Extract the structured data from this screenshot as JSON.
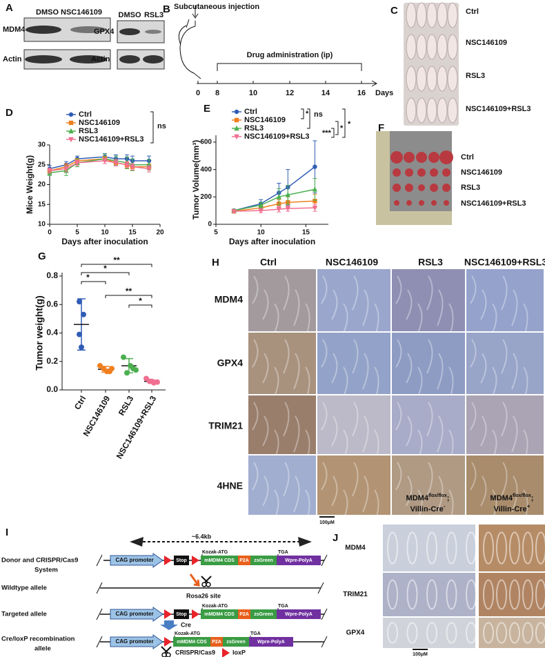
{
  "panel_letters": [
    "A",
    "B",
    "C",
    "D",
    "E",
    "F",
    "G",
    "H",
    "I",
    "J"
  ],
  "panel_a": {
    "lanes_left": [
      "DMSO",
      "NSC146109"
    ],
    "lanes_right": [
      "DMSO",
      "RSL3"
    ],
    "proteins_left": [
      "MDM4",
      "Actin"
    ],
    "proteins_right": [
      "GPX4",
      "Actin"
    ]
  },
  "panel_b": {
    "injection": "Subcutaneous injection",
    "administration": "Drug administration (ip)",
    "days": [
      0,
      8,
      10,
      12,
      14,
      16
    ],
    "unit": "Days"
  },
  "panel_c": {
    "groups": [
      "Ctrl",
      "NSC146109",
      "RSL3",
      "NSC146109+RSL3"
    ]
  },
  "panel_f": {
    "groups": [
      "Ctrl",
      "NSC146109",
      "RSL3",
      "NSC146109+RSL3"
    ]
  },
  "panel_h": {
    "columns": [
      "Ctrl",
      "NSC146109",
      "RSL3",
      "NSC146109+RSL3"
    ],
    "rows": [
      "MDM4",
      "GPX4",
      "TRIM21",
      "4HNE"
    ],
    "scale": "100μM"
  },
  "panel_i": {
    "rows": [
      "Donor and CRISPR/Cas9",
      "System",
      "Wildtype allele",
      "Targeted allele",
      "Cre/loxP recombination",
      "allele"
    ],
    "length": "~6.4kb",
    "site": "Rosa26 site",
    "cre": "Cre",
    "elements": {
      "cag": "CAG promoter",
      "stop": "Stop",
      "kozak": "Kozak-ATG",
      "cds": "mMDM4 CDS",
      "p2a": "P2A",
      "zsgreen": "zsGreen",
      "tga": "TGA",
      "wpre": "Wpre-PolyA"
    },
    "legend": [
      "CRISPR/Cas9",
      "loxP"
    ]
  },
  "panel_j": {
    "columns": [
      {
        "gene": "MDM4",
        "genotype": "flox/flox",
        "sep": ";",
        "driver": "Villin-Cre",
        "status": "-"
      },
      {
        "gene": "MDM4",
        "genotype": "flox/flox",
        "sep": ";",
        "driver": "Villin-Cre",
        "status": "+"
      }
    ],
    "rows": [
      "MDM4",
      "TRIM21",
      "GPX4"
    ],
    "scale": "100μM"
  },
  "chart_data": [
    {
      "type": "line",
      "ylabel": "Mice Weight(g)",
      "xlabel": "Days after inoculation",
      "x": [
        0,
        3,
        5,
        10,
        12,
        14,
        15,
        18
      ],
      "xlim": [
        0,
        20
      ],
      "xticks": [
        0,
        5,
        10,
        15,
        20
      ],
      "ylim": [
        10,
        30
      ],
      "yticks": [
        10,
        15,
        20,
        25,
        30
      ],
      "series": [
        {
          "name": "Ctrl",
          "color": "#2f5cb5",
          "marker": "circle",
          "values": [
            24,
            25,
            26.5,
            27,
            26.5,
            26.5,
            26,
            26
          ],
          "errors": [
            0.8,
            0.8,
            0.7,
            0.8,
            1,
            1,
            1.2,
            1.2
          ]
        },
        {
          "name": "NSC146109",
          "color": "#f07f1e",
          "marker": "square",
          "values": [
            23.5,
            24.5,
            26,
            26.5,
            25.5,
            25,
            24.5,
            24.5
          ],
          "errors": [
            0.6,
            0.8,
            0.6,
            0.6,
            0.8,
            0.8,
            0.8,
            0.7
          ]
        },
        {
          "name": "RSL3",
          "color": "#4caf4f",
          "marker": "triangle",
          "values": [
            23,
            23.5,
            25.5,
            26.5,
            26,
            25.5,
            25,
            25
          ],
          "errors": [
            0.7,
            1.2,
            1,
            1.2,
            1.2,
            1.5,
            1.5,
            1.3
          ]
        },
        {
          "name": "NSC146109+RSL3",
          "color": "#f06f90",
          "marker": "triangle-down",
          "values": [
            23.5,
            24,
            25.5,
            26,
            25.5,
            25,
            24.5,
            24
          ],
          "errors": [
            0.6,
            0.8,
            0.7,
            0.7,
            0.8,
            0.7,
            0.8,
            0.8
          ]
        }
      ],
      "annotations": [
        "ns"
      ]
    },
    {
      "type": "line",
      "ylabel": "Tumor Volume(mm³)",
      "xlabel": "Days after inoculation",
      "x": [
        7,
        10,
        12,
        13,
        16
      ],
      "xlim": [
        5,
        17.5
      ],
      "xticks": [
        5,
        10,
        15
      ],
      "ylim": [
        0,
        650
      ],
      "yticks": [
        0,
        200,
        400,
        600
      ],
      "series": [
        {
          "name": "Ctrl",
          "color": "#2f5cb5",
          "marker": "circle",
          "values": [
            100,
            150,
            230,
            270,
            420
          ],
          "errors": [
            10,
            30,
            70,
            130,
            190
          ]
        },
        {
          "name": "NSC146109",
          "color": "#f07f1e",
          "marker": "square",
          "values": [
            95,
            120,
            150,
            160,
            170
          ],
          "errors": [
            10,
            20,
            30,
            40,
            50
          ]
        },
        {
          "name": "RSL3",
          "color": "#4caf4f",
          "marker": "triangle",
          "values": [
            100,
            140,
            200,
            215,
            255
          ],
          "errors": [
            10,
            20,
            60,
            70,
            80
          ]
        },
        {
          "name": "NSC146109+RSL3",
          "color": "#f06f90",
          "marker": "triangle-down",
          "values": [
            95,
            100,
            110,
            115,
            120
          ],
          "errors": [
            10,
            15,
            20,
            20,
            25
          ]
        }
      ],
      "annotations": [
        "*",
        "ns",
        "***",
        "*",
        "*"
      ]
    },
    {
      "type": "strip",
      "ylabel": "Tumor weight(g)",
      "categories": [
        "Ctrl",
        "NSC146109",
        "RSL3",
        "NSC146109+RSL3"
      ],
      "colors": [
        "#2f5cb5",
        "#f07f1e",
        "#4caf4f",
        "#f06f90"
      ],
      "points": [
        [
          0.62,
          0.53,
          0.39,
          0.3
        ],
        [
          0.17,
          0.15,
          0.13,
          0.13,
          0.15
        ],
        [
          0.23,
          0.17,
          0.15,
          0.12,
          0.14
        ],
        [
          0.08,
          0.06,
          0.05,
          0.055,
          0.06
        ]
      ],
      "means": [
        0.46,
        0.145,
        0.17,
        0.06
      ],
      "sds": [
        0.18,
        0.02,
        0.05,
        0.01
      ],
      "ylim": [
        0,
        0.8
      ],
      "yticks": [
        {
          "value": 0,
          "label": "0.0"
        },
        {
          "value": 0.2,
          "label": "0.2"
        },
        {
          "value": 0.4,
          "label": "0.4"
        },
        {
          "value": 0.6,
          "label": "0.6"
        },
        {
          "value": 0.8,
          "label": "0.8"
        }
      ],
      "annotations": [
        "**",
        "*",
        "*",
        "**",
        "*"
      ]
    }
  ]
}
